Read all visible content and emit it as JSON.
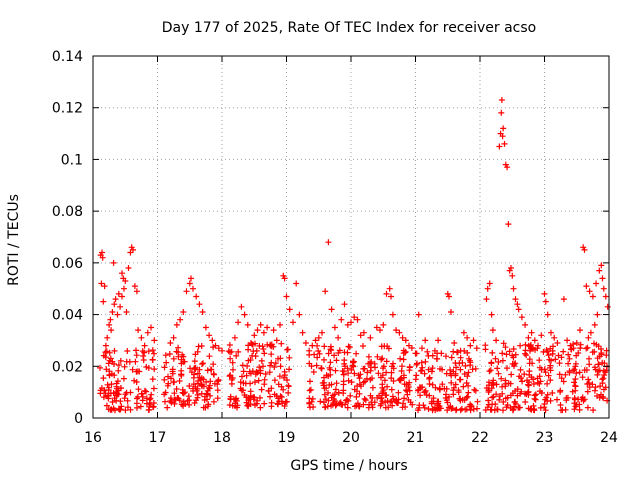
{
  "chart_data": {
    "type": "scatter",
    "title": "Day 177 of 2025, Rate Of TEC Index for receiver acso",
    "xlabel": "GPS time / hours",
    "ylabel": "ROTI / TECUs",
    "xlim": [
      16,
      24
    ],
    "ylim": [
      0,
      0.14
    ],
    "xticks": [
      16,
      17,
      18,
      19,
      20,
      21,
      22,
      23,
      24
    ],
    "xtick_labels": [
      "16",
      "17",
      "18",
      "19",
      "20",
      "21",
      "22",
      "23",
      "24"
    ],
    "yticks": [
      0,
      0.02,
      0.04,
      0.06,
      0.08,
      0.1,
      0.12,
      0.14
    ],
    "ytick_labels": [
      "0",
      "0.02",
      "0.04",
      "0.06",
      "0.08",
      "0.1",
      "0.12",
      "0.14"
    ],
    "grid": true,
    "marker": "+",
    "marker_color": "#ff0000",
    "series": [
      {
        "name": "ROTI",
        "points": [
          [
            16.12,
            0.063
          ],
          [
            16.14,
            0.064
          ],
          [
            16.15,
            0.062
          ],
          [
            16.13,
            0.052
          ],
          [
            16.18,
            0.051
          ],
          [
            16.16,
            0.045
          ],
          [
            16.22,
            0.031
          ],
          [
            16.25,
            0.036
          ],
          [
            16.28,
            0.034
          ],
          [
            16.3,
            0.041
          ],
          [
            16.33,
            0.044
          ],
          [
            16.35,
            0.046
          ],
          [
            16.38,
            0.04
          ],
          [
            16.4,
            0.048
          ],
          [
            16.42,
            0.043
          ],
          [
            16.45,
            0.047
          ],
          [
            16.48,
            0.05
          ],
          [
            16.5,
            0.053
          ],
          [
            16.55,
            0.058
          ],
          [
            16.58,
            0.064
          ],
          [
            16.6,
            0.066
          ],
          [
            16.62,
            0.065
          ],
          [
            16.65,
            0.051
          ],
          [
            16.68,
            0.049
          ],
          [
            16.45,
            0.056
          ],
          [
            16.47,
            0.054
          ],
          [
            16.32,
            0.06
          ],
          [
            16.27,
            0.038
          ],
          [
            16.2,
            0.028
          ],
          [
            16.52,
            0.041
          ],
          [
            16.7,
            0.034
          ],
          [
            16.75,
            0.031
          ],
          [
            16.8,
            0.028
          ],
          [
            16.85,
            0.033
          ],
          [
            16.9,
            0.035
          ],
          [
            16.95,
            0.03
          ],
          [
            17.3,
            0.036
          ],
          [
            17.35,
            0.038
          ],
          [
            17.4,
            0.041
          ],
          [
            17.45,
            0.049
          ],
          [
            17.5,
            0.052
          ],
          [
            17.52,
            0.054
          ],
          [
            17.55,
            0.05
          ],
          [
            17.6,
            0.047
          ],
          [
            17.65,
            0.044
          ],
          [
            17.7,
            0.041
          ],
          [
            17.75,
            0.035
          ],
          [
            17.8,
            0.032
          ],
          [
            17.25,
            0.031
          ],
          [
            17.2,
            0.029
          ],
          [
            17.85,
            0.03
          ],
          [
            17.9,
            0.028
          ],
          [
            17.95,
            0.027
          ],
          [
            18.0,
            0.026
          ],
          [
            18.2,
            0.031
          ],
          [
            18.25,
            0.037
          ],
          [
            18.3,
            0.043
          ],
          [
            18.35,
            0.04
          ],
          [
            18.4,
            0.036
          ],
          [
            18.5,
            0.032
          ],
          [
            18.55,
            0.034
          ],
          [
            18.6,
            0.036
          ],
          [
            18.65,
            0.033
          ],
          [
            18.7,
            0.035
          ],
          [
            18.8,
            0.034
          ],
          [
            18.9,
            0.036
          ],
          [
            18.95,
            0.055
          ],
          [
            18.97,
            0.054
          ],
          [
            19.0,
            0.047
          ],
          [
            19.05,
            0.042
          ],
          [
            19.1,
            0.037
          ],
          [
            19.15,
            0.052
          ],
          [
            19.2,
            0.04
          ],
          [
            19.25,
            0.033
          ],
          [
            19.3,
            0.029
          ],
          [
            18.85,
            0.03
          ],
          [
            18.45,
            0.029
          ],
          [
            18.75,
            0.028
          ],
          [
            19.4,
            0.028
          ],
          [
            19.45,
            0.03
          ],
          [
            19.5,
            0.031
          ],
          [
            19.55,
            0.033
          ],
          [
            19.6,
            0.049
          ],
          [
            19.65,
            0.068
          ],
          [
            19.7,
            0.042
          ],
          [
            19.75,
            0.035
          ],
          [
            19.8,
            0.031
          ],
          [
            19.85,
            0.038
          ],
          [
            19.9,
            0.044
          ],
          [
            19.95,
            0.036
          ],
          [
            20.0,
            0.037
          ],
          [
            20.05,
            0.039
          ],
          [
            20.1,
            0.038
          ],
          [
            20.15,
            0.032
          ],
          [
            20.2,
            0.033
          ],
          [
            20.3,
            0.031
          ],
          [
            20.4,
            0.035
          ],
          [
            20.45,
            0.034
          ],
          [
            20.5,
            0.036
          ],
          [
            20.55,
            0.048
          ],
          [
            20.6,
            0.05
          ],
          [
            20.62,
            0.047
          ],
          [
            20.65,
            0.04
          ],
          [
            20.7,
            0.034
          ],
          [
            20.75,
            0.033
          ],
          [
            20.8,
            0.031
          ],
          [
            20.85,
            0.03
          ],
          [
            20.9,
            0.028
          ],
          [
            21.0,
            0.025
          ],
          [
            21.05,
            0.04
          ],
          [
            21.1,
            0.027
          ],
          [
            21.2,
            0.024
          ],
          [
            21.3,
            0.026
          ],
          [
            21.4,
            0.025
          ],
          [
            21.5,
            0.048
          ],
          [
            21.52,
            0.047
          ],
          [
            21.55,
            0.041
          ],
          [
            21.6,
            0.029
          ],
          [
            21.7,
            0.026
          ],
          [
            21.8,
            0.031
          ],
          [
            21.85,
            0.028
          ],
          [
            21.9,
            0.03
          ],
          [
            21.95,
            0.027
          ],
          [
            21.35,
            0.03
          ],
          [
            21.75,
            0.033
          ],
          [
            21.15,
            0.03
          ],
          [
            22.1,
            0.046
          ],
          [
            22.12,
            0.05
          ],
          [
            22.15,
            0.052
          ],
          [
            22.18,
            0.04
          ],
          [
            22.2,
            0.034
          ],
          [
            22.25,
            0.03
          ],
          [
            22.3,
            0.105
          ],
          [
            22.32,
            0.11
          ],
          [
            22.33,
            0.118
          ],
          [
            22.34,
            0.123
          ],
          [
            22.35,
            0.109
          ],
          [
            22.36,
            0.112
          ],
          [
            22.38,
            0.106
          ],
          [
            22.4,
            0.098
          ],
          [
            22.42,
            0.097
          ],
          [
            22.44,
            0.075
          ],
          [
            22.46,
            0.057
          ],
          [
            22.48,
            0.058
          ],
          [
            22.5,
            0.055
          ],
          [
            22.52,
            0.05
          ],
          [
            22.55,
            0.046
          ],
          [
            22.58,
            0.044
          ],
          [
            22.6,
            0.042
          ],
          [
            22.65,
            0.039
          ],
          [
            22.7,
            0.036
          ],
          [
            22.75,
            0.031
          ],
          [
            22.8,
            0.033
          ],
          [
            22.85,
            0.03
          ],
          [
            22.9,
            0.028
          ],
          [
            22.95,
            0.032
          ],
          [
            23.0,
            0.048
          ],
          [
            23.02,
            0.045
          ],
          [
            23.05,
            0.04
          ],
          [
            23.1,
            0.033
          ],
          [
            23.15,
            0.031
          ],
          [
            23.2,
            0.029
          ],
          [
            23.3,
            0.046
          ],
          [
            23.35,
            0.03
          ],
          [
            23.4,
            0.028
          ],
          [
            23.45,
            0.027
          ],
          [
            23.5,
            0.029
          ],
          [
            23.55,
            0.034
          ],
          [
            23.6,
            0.066
          ],
          [
            23.62,
            0.065
          ],
          [
            23.65,
            0.051
          ],
          [
            23.7,
            0.049
          ],
          [
            23.75,
            0.047
          ],
          [
            23.8,
            0.052
          ],
          [
            23.85,
            0.057
          ],
          [
            23.88,
            0.059
          ],
          [
            23.9,
            0.054
          ],
          [
            23.92,
            0.05
          ],
          [
            23.95,
            0.047
          ],
          [
            23.98,
            0.043
          ],
          [
            23.82,
            0.04
          ],
          [
            23.78,
            0.036
          ],
          [
            23.72,
            0.033
          ],
          [
            23.68,
            0.031
          ]
        ],
        "dense_bands": [
          {
            "x_range": [
              16.1,
              16.95
            ],
            "y_range": [
              0.003,
              0.027
            ]
          },
          {
            "x_range": [
              17.1,
              17.95
            ],
            "y_range": [
              0.004,
              0.028
            ]
          },
          {
            "x_range": [
              18.1,
              19.05
            ],
            "y_range": [
              0.004,
              0.029
            ]
          },
          {
            "x_range": [
              19.35,
              20.95
            ],
            "y_range": [
              0.004,
              0.028
            ]
          },
          {
            "x_range": [
              21.0,
              21.97
            ],
            "y_range": [
              0.003,
              0.026
            ]
          },
          {
            "x_range": [
              22.08,
              23.98
            ],
            "y_range": [
              0.003,
              0.029
            ]
          }
        ]
      }
    ]
  }
}
